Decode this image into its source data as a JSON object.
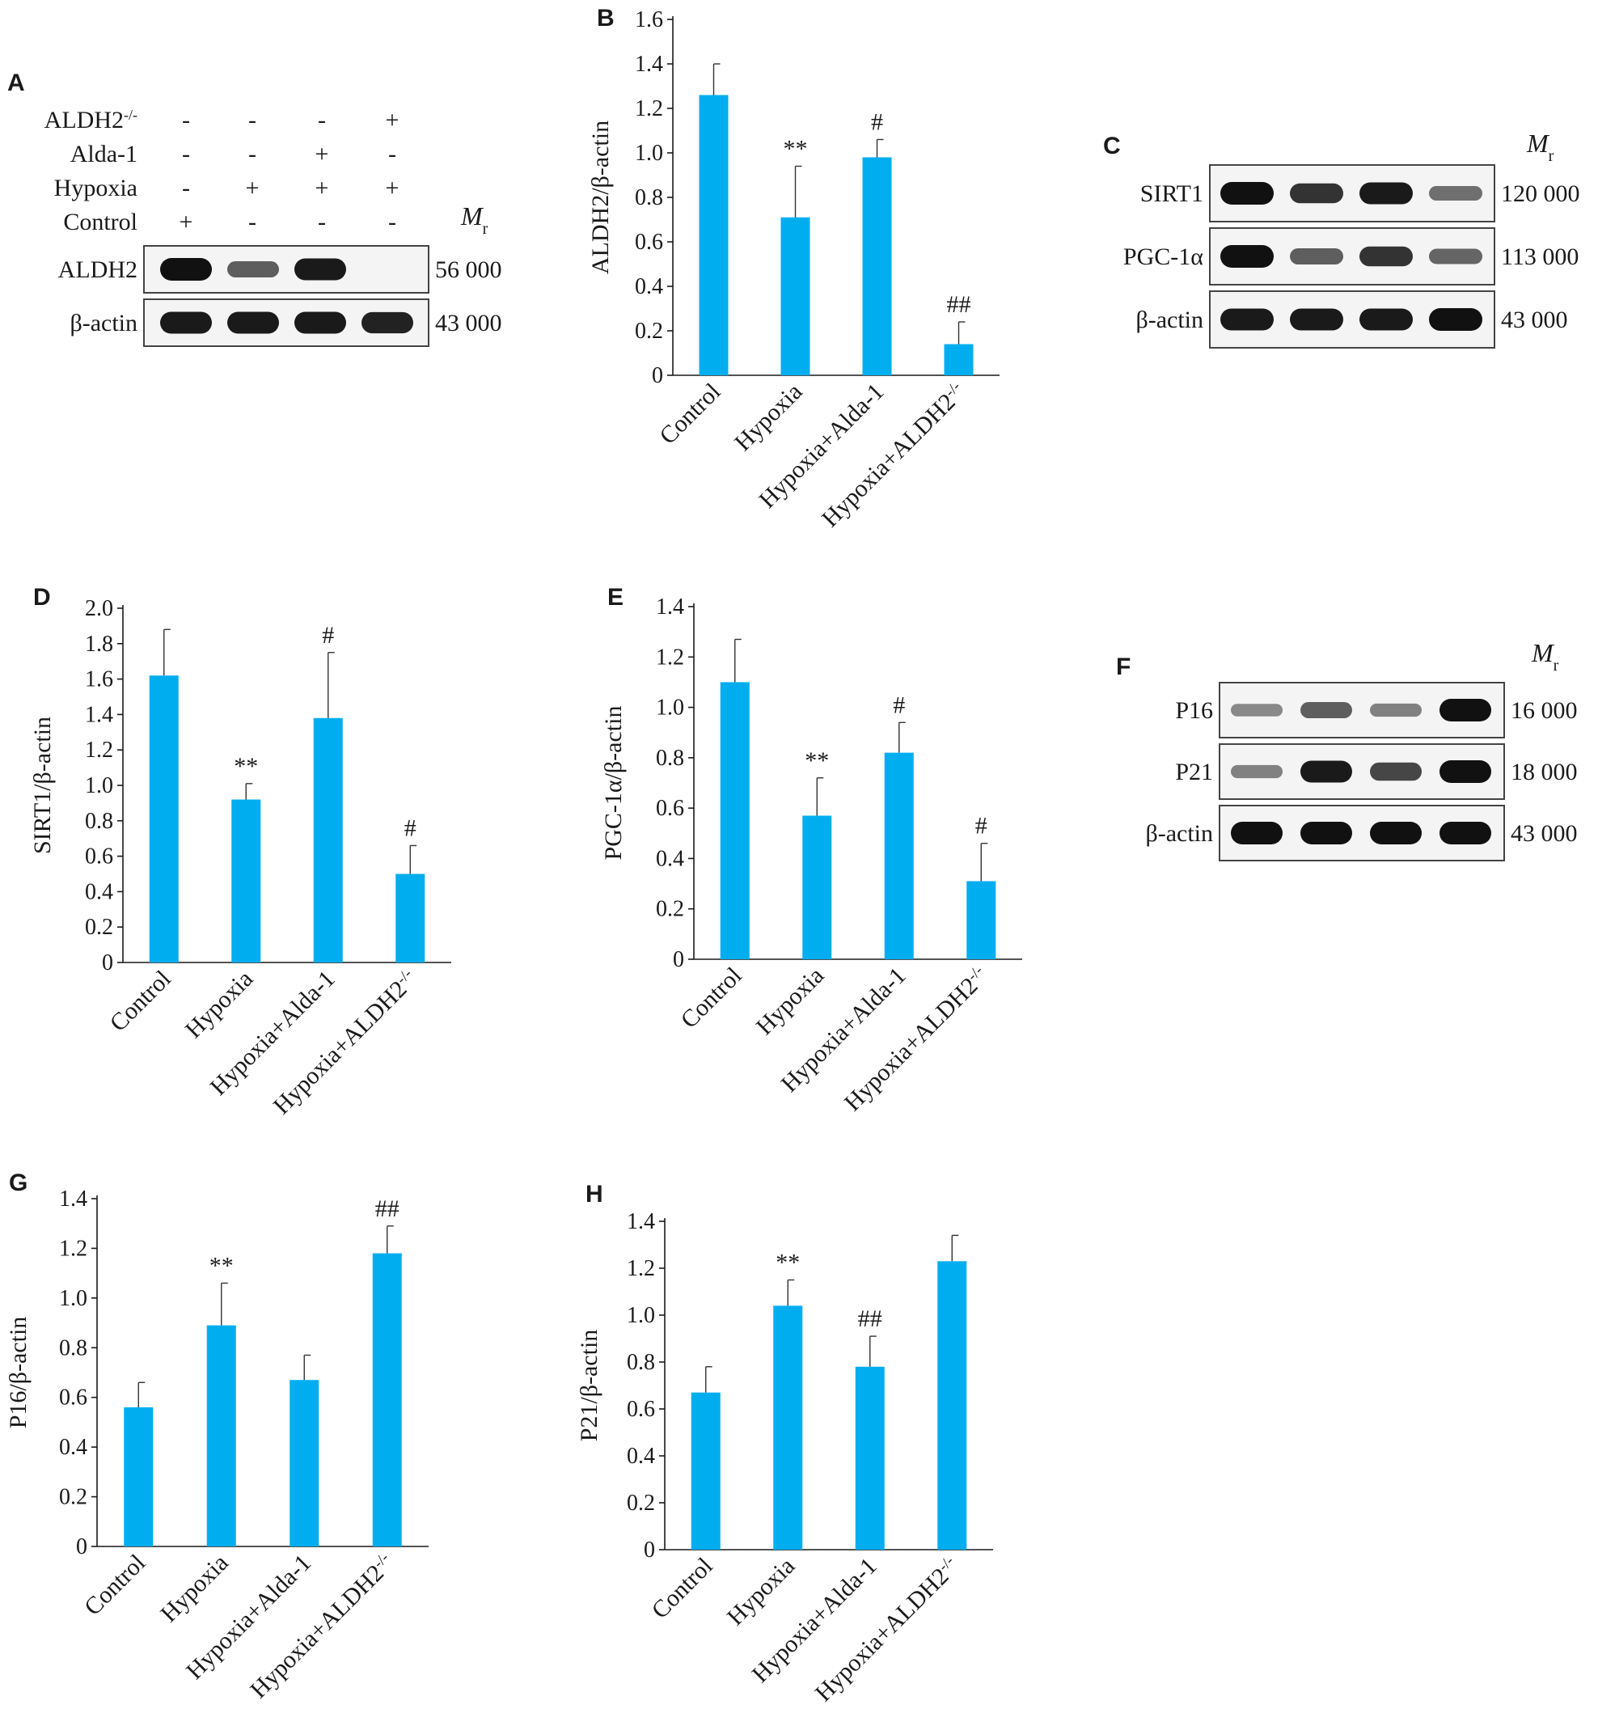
{
  "panels": {
    "A": "A",
    "B": "B",
    "C": "C",
    "D": "D",
    "E": "E",
    "F": "F",
    "G": "G",
    "H": "H"
  },
  "colors": {
    "bar": "#00aeef",
    "band": "#111111",
    "frame": "#444444"
  },
  "mr_label": {
    "main": "M",
    "sub": "r"
  },
  "blot_A": {
    "conditions": [
      {
        "label": "ALDH2",
        "sup": "-/-",
        "marks": [
          "-",
          "-",
          "-",
          "+"
        ]
      },
      {
        "label": "Alda-1",
        "sup": "",
        "marks": [
          "-",
          "-",
          "+",
          "-"
        ]
      },
      {
        "label": "Hypoxia",
        "sup": "",
        "marks": [
          "-",
          "+",
          "+",
          "+"
        ]
      },
      {
        "label": "Control",
        "sup": "",
        "marks": [
          "+",
          "-",
          "-",
          "-"
        ]
      }
    ],
    "bands": [
      {
        "label": "ALDH2",
        "mr": "56 000",
        "intensity": [
          1.0,
          0.55,
          0.95,
          0.0
        ]
      },
      {
        "label": "β-actin",
        "mr": "43 000",
        "intensity": [
          0.95,
          0.95,
          0.95,
          0.9
        ]
      }
    ]
  },
  "blot_C": {
    "bands": [
      {
        "label": "SIRT1",
        "mr": "120 000",
        "intensity": [
          1.0,
          0.8,
          0.95,
          0.45
        ]
      },
      {
        "label": "PGC-1α",
        "mr": "113 000",
        "intensity": [
          1.0,
          0.55,
          0.8,
          0.5
        ]
      },
      {
        "label": "β-actin",
        "mr": "43 000",
        "intensity": [
          0.95,
          0.95,
          0.95,
          1.0
        ]
      }
    ]
  },
  "blot_F": {
    "bands": [
      {
        "label": "P16",
        "mr": "16 000",
        "intensity": [
          0.3,
          0.55,
          0.35,
          1.0
        ]
      },
      {
        "label": "P21",
        "mr": "18 000",
        "intensity": [
          0.35,
          0.95,
          0.7,
          1.0
        ]
      },
      {
        "label": "β-actin",
        "mr": "43 000",
        "intensity": [
          1.0,
          1.0,
          1.0,
          1.0
        ]
      }
    ]
  },
  "chart_data": [
    {
      "panel": "B",
      "type": "bar",
      "categories": [
        "Control",
        "Hypoxia",
        "Hypoxia+Alda-1",
        "Hypoxia+ALDH2"
      ],
      "category_sup": [
        "",
        "",
        "",
        "-/-"
      ],
      "values": [
        1.26,
        0.71,
        0.98,
        0.14
      ],
      "errors": [
        0.14,
        0.23,
        0.08,
        0.1
      ],
      "annotations": [
        "",
        "**",
        "#",
        "##"
      ],
      "ylabel": "ALDH2/β-actin",
      "ylim": [
        0,
        1.6
      ],
      "yticks": [
        "0",
        "0.2",
        "0.4",
        "0.6",
        "0.8",
        "1.0",
        "1.2",
        "1.4",
        "1.6"
      ]
    },
    {
      "panel": "D",
      "type": "bar",
      "categories": [
        "Control",
        "Hypoxia",
        "Hypoxia+Alda-1",
        "Hypoxia+ALDH2"
      ],
      "category_sup": [
        "",
        "",
        "",
        "-/-"
      ],
      "values": [
        1.62,
        0.92,
        1.38,
        0.5
      ],
      "errors": [
        0.26,
        0.09,
        0.37,
        0.16
      ],
      "annotations": [
        "",
        "**",
        "#",
        "#"
      ],
      "ylabel": "SIRT1/β-actin",
      "ylim": [
        0,
        2.0
      ],
      "yticks": [
        "0",
        "0.2",
        "0.4",
        "0.6",
        "0.8",
        "1.0",
        "1.2",
        "1.4",
        "1.6",
        "1.8",
        "2.0"
      ]
    },
    {
      "panel": "E",
      "type": "bar",
      "categories": [
        "Control",
        "Hypoxia",
        "Hypoxia+Alda-1",
        "Hypoxia+ALDH2"
      ],
      "category_sup": [
        "",
        "",
        "",
        "-/-"
      ],
      "values": [
        1.1,
        0.57,
        0.82,
        0.31
      ],
      "errors": [
        0.17,
        0.15,
        0.12,
        0.15
      ],
      "annotations": [
        "",
        "**",
        "#",
        "#"
      ],
      "ylabel": "PGC-1α/β-actin",
      "ylim": [
        0,
        1.4
      ],
      "yticks": [
        "0",
        "0.2",
        "0.4",
        "0.6",
        "0.8",
        "1.0",
        "1.2",
        "1.4"
      ]
    },
    {
      "panel": "G",
      "type": "bar",
      "categories": [
        "Control",
        "Hypoxia",
        "Hypoxia+Alda-1",
        "Hypoxia+ALDH2"
      ],
      "category_sup": [
        "",
        "",
        "",
        "-/-"
      ],
      "values": [
        0.56,
        0.89,
        0.67,
        1.18
      ],
      "errors": [
        0.1,
        0.17,
        0.1,
        0.11
      ],
      "annotations": [
        "",
        "**",
        "",
        "##"
      ],
      "ylabel": "P16/β-actin",
      "ylim": [
        0,
        1.4
      ],
      "yticks": [
        "0",
        "0.2",
        "0.4",
        "0.6",
        "0.8",
        "1.0",
        "1.2",
        "1.4"
      ]
    },
    {
      "panel": "H",
      "type": "bar",
      "categories": [
        "Control",
        "Hypoxia",
        "Hypoxia+Alda-1",
        "Hypoxia+ALDH2"
      ],
      "category_sup": [
        "",
        "",
        "",
        "-/-"
      ],
      "values": [
        0.67,
        1.04,
        0.78,
        1.23
      ],
      "errors": [
        0.11,
        0.11,
        0.13,
        0.11
      ],
      "annotations": [
        "",
        "**",
        "##",
        ""
      ],
      "ylabel": "P21/β-actin",
      "ylim": [
        0,
        1.4
      ],
      "yticks": [
        "0",
        "0.2",
        "0.4",
        "0.6",
        "0.8",
        "1.0",
        "1.2",
        "1.4"
      ]
    }
  ]
}
